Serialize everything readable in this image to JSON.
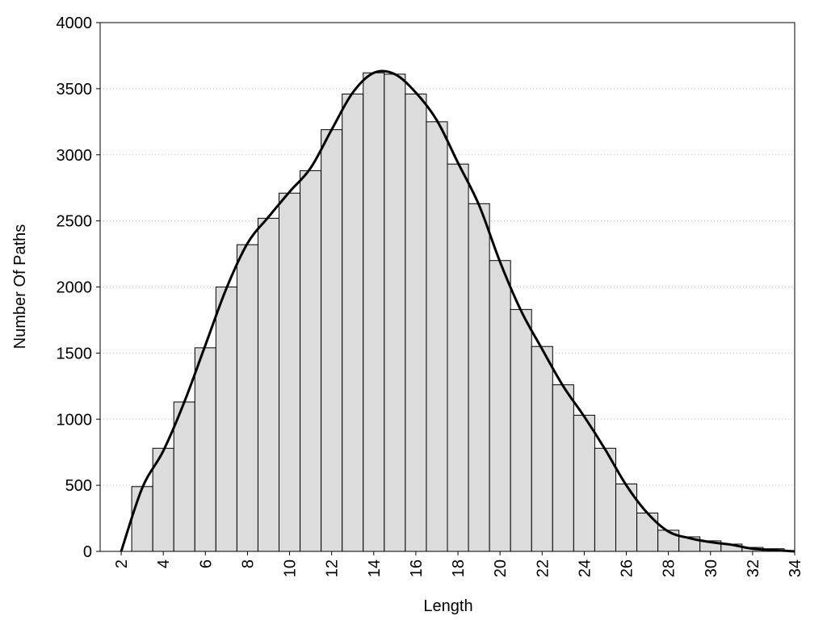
{
  "chart_data": {
    "type": "histogram",
    "xlabel": "Length",
    "ylabel": "Number Of Paths",
    "bins": [
      2.5,
      3.5,
      4.5,
      5.5,
      6.5,
      7.5,
      8.5,
      9.5,
      10.5,
      11.5,
      12.5,
      13.5,
      14.5,
      15.5,
      16.5,
      17.5,
      18.5,
      19.5,
      20.5,
      21.5,
      22.5,
      23.5,
      24.5,
      25.5,
      26.5,
      27.5,
      28.5,
      29.5,
      30.5,
      31.5,
      32.5,
      33.5
    ],
    "counts": [
      490,
      780,
      1130,
      1540,
      2000,
      2320,
      2520,
      2710,
      2880,
      3190,
      3460,
      3620,
      3610,
      3460,
      3250,
      2930,
      2630,
      2200,
      1830,
      1550,
      1260,
      1030,
      780,
      510,
      290,
      160,
      110,
      80,
      55,
      30,
      20
    ],
    "color": "#dcdcdc",
    "overlay": {
      "type": "line",
      "color": "#000000",
      "x": [
        2,
        3,
        4,
        5,
        6,
        7,
        8,
        9,
        10,
        11,
        12,
        13,
        14,
        15,
        16,
        17,
        18,
        19,
        20,
        21,
        22,
        23,
        24,
        25,
        26,
        27,
        28,
        29,
        30,
        31,
        32,
        33,
        34
      ],
      "values": [
        0,
        480,
        760,
        1130,
        1560,
        1990,
        2330,
        2530,
        2720,
        2900,
        3190,
        3470,
        3620,
        3610,
        3470,
        3260,
        2940,
        2620,
        2190,
        1820,
        1530,
        1250,
        1020,
        770,
        500,
        290,
        150,
        100,
        70,
        50,
        20,
        10,
        0
      ]
    },
    "xlim": [
      1,
      34
    ],
    "ylim": [
      0,
      4000
    ],
    "xticks": [
      2,
      4,
      6,
      8,
      10,
      12,
      14,
      16,
      18,
      20,
      22,
      24,
      26,
      28,
      30,
      32,
      34
    ],
    "yticks": [
      0,
      500,
      1000,
      1500,
      2000,
      2500,
      3000,
      3500,
      4000
    ],
    "grid": true
  }
}
